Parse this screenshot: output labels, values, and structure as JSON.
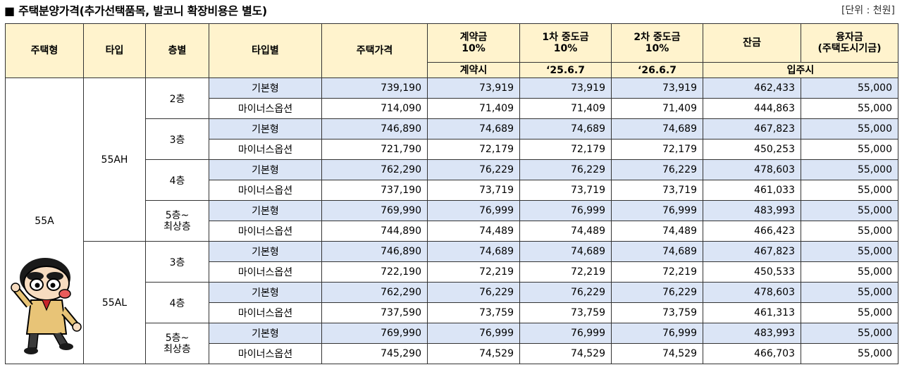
{
  "title": "■ 주택분양가격(추가선택품목, 발코니 확장비용은 별도)",
  "unit": "[단위 : 천원]",
  "headers": {
    "house_type": "주택형",
    "type": "타입",
    "floor": "층별",
    "type_option": "타입별",
    "price": "주택가격",
    "contract_1": "계약금",
    "contract_2": "10%",
    "mid1_1": "1차 중도금",
    "mid1_2": "10%",
    "mid2_1": "2차 중도금",
    "mid2_2": "10%",
    "balance": "잔금",
    "loan_1": "융자금",
    "loan_2": "(주택도시기금)",
    "when_contract": "계약시",
    "when_mid1": "‘25.6.7",
    "when_mid2": "‘26.6.7",
    "when_movein": "입주시"
  },
  "house_type": "55A",
  "groups": [
    {
      "type": "55AH",
      "floors": [
        {
          "floor": "2층",
          "rows": [
            {
              "opt": "기본형",
              "price": "739,190",
              "c": "73,919",
              "m1": "73,919",
              "m2": "73,919",
              "bal": "462,433",
              "loan": "55,000"
            },
            {
              "opt": "마이너스옵션",
              "price": "714,090",
              "c": "71,409",
              "m1": "71,409",
              "m2": "71,409",
              "bal": "444,863",
              "loan": "55,000"
            }
          ]
        },
        {
          "floor": "3층",
          "rows": [
            {
              "opt": "기본형",
              "price": "746,890",
              "c": "74,689",
              "m1": "74,689",
              "m2": "74,689",
              "bal": "467,823",
              "loan": "55,000"
            },
            {
              "opt": "마이너스옵션",
              "price": "721,790",
              "c": "72,179",
              "m1": "72,179",
              "m2": "72,179",
              "bal": "450,253",
              "loan": "55,000"
            }
          ]
        },
        {
          "floor": "4층",
          "rows": [
            {
              "opt": "기본형",
              "price": "762,290",
              "c": "76,229",
              "m1": "76,229",
              "m2": "76,229",
              "bal": "478,603",
              "loan": "55,000"
            },
            {
              "opt": "마이너스옵션",
              "price": "737,190",
              "c": "73,719",
              "m1": "73,719",
              "m2": "73,719",
              "bal": "461,033",
              "loan": "55,000"
            }
          ]
        },
        {
          "floor_a": "5층~",
          "floor_b": "최상층",
          "rows": [
            {
              "opt": "기본형",
              "price": "769,990",
              "c": "76,999",
              "m1": "76,999",
              "m2": "76,999",
              "bal": "483,993",
              "loan": "55,000"
            },
            {
              "opt": "마이너스옵션",
              "price": "744,890",
              "c": "74,489",
              "m1": "74,489",
              "m2": "74,489",
              "bal": "466,423",
              "loan": "55,000"
            }
          ]
        }
      ]
    },
    {
      "type": "55AL",
      "floors": [
        {
          "floor": "3층",
          "rows": [
            {
              "opt": "기본형",
              "price": "746,890",
              "c": "74,689",
              "m1": "74,689",
              "m2": "74,689",
              "bal": "467,823",
              "loan": "55,000"
            },
            {
              "opt": "마이너스옵션",
              "price": "722,190",
              "c": "72,219",
              "m1": "72,219",
              "m2": "72,219",
              "bal": "450,533",
              "loan": "55,000"
            }
          ]
        },
        {
          "floor": "4층",
          "rows": [
            {
              "opt": "기본형",
              "price": "762,290",
              "c": "76,229",
              "m1": "76,229",
              "m2": "76,229",
              "bal": "478,603",
              "loan": "55,000"
            },
            {
              "opt": "마이너스옵션",
              "price": "737,590",
              "c": "73,759",
              "m1": "73,759",
              "m2": "73,759",
              "bal": "461,313",
              "loan": "55,000"
            }
          ]
        },
        {
          "floor_a": "5층~",
          "floor_b": "최상층",
          "rows": [
            {
              "opt": "기본형",
              "price": "769,990",
              "c": "76,999",
              "m1": "76,999",
              "m2": "76,999",
              "bal": "483,993",
              "loan": "55,000"
            },
            {
              "opt": "마이너스옵션",
              "price": "745,290",
              "c": "74,529",
              "m1": "74,529",
              "m2": "74,529",
              "bal": "466,703",
              "loan": "55,000"
            }
          ]
        }
      ]
    }
  ],
  "colors": {
    "header_bg": "#fff3cd",
    "base_row_bg": "#dbe5f6"
  },
  "icons": {
    "mascot": "cartoon-character-icon"
  }
}
